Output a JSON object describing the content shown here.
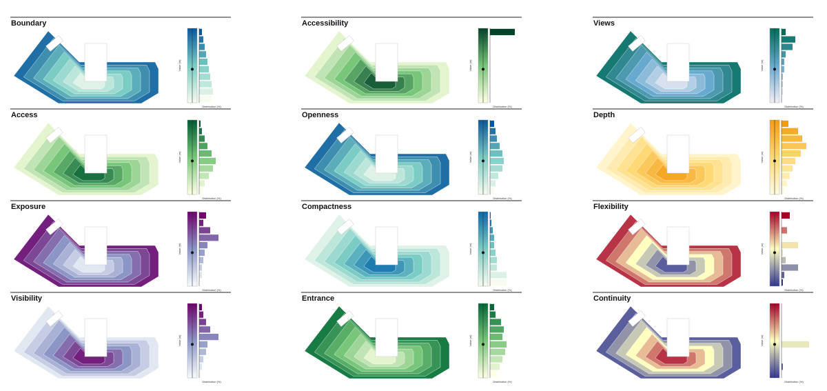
{
  "panels": [
    {
      "title": "Boundary",
      "y_label": "Value (m)",
      "x_label": "Distribution (%)",
      "palette": [
        "#f7fcf0",
        "#7bccc4",
        "#08589e"
      ],
      "bars": [
        2,
        3,
        4,
        5,
        6,
        7,
        8,
        9,
        10,
        9
      ]
    },
    {
      "title": "Accessibility",
      "y_label": "Value (m)",
      "x_label": "Distribution (%)",
      "palette": [
        "#ffffe5",
        "#78c679",
        "#004529"
      ],
      "bars": [
        18,
        0,
        0,
        0,
        0,
        0,
        0,
        0,
        0,
        0
      ]
    },
    {
      "title": "Views",
      "y_label": "Value (m)",
      "x_label": "Distribution (%)",
      "palette": [
        "#f2eef7",
        "#67a9cf",
        "#016c59"
      ],
      "bars": [
        3,
        10,
        8,
        3,
        2,
        2,
        1,
        1,
        1,
        0.5
      ]
    },
    {
      "title": "Access",
      "y_label": "Value (m)",
      "x_label": "Distribution (%)",
      "palette": [
        "#ffffe5",
        "#78c679",
        "#005a32"
      ],
      "bars": [
        1,
        2,
        4,
        6,
        9,
        12,
        10,
        7,
        4,
        2
      ]
    },
    {
      "title": "Openness",
      "y_label": "Value (m)",
      "x_label": "Distribution (%)",
      "palette": [
        "#f7fcf0",
        "#7bccc4",
        "#08589e"
      ],
      "bars": [
        3,
        4,
        5,
        7,
        9,
        10,
        9,
        6,
        4,
        3
      ]
    },
    {
      "title": "Depth",
      "y_label": "Value (m)",
      "x_label": "Distribution (%)",
      "palette": [
        "#fffbe0",
        "#fed976",
        "#f39c12"
      ],
      "bars": [
        5,
        12,
        15,
        18,
        14,
        10,
        8,
        6,
        4,
        2
      ]
    },
    {
      "title": "Exposure",
      "y_label": "Value (m)",
      "x_label": "Distribution (%)",
      "palette": [
        "#f7fcfd",
        "#8c96c6",
        "#6e016b"
      ],
      "bars": [
        5,
        3,
        8,
        14,
        6,
        4,
        3,
        2,
        2,
        1
      ]
    },
    {
      "title": "Compactness",
      "y_label": "Value (m)",
      "x_label": "Distribution (%)",
      "palette": [
        "#f7fcf0",
        "#7bccc4",
        "#0868ac"
      ],
      "bars": [
        0.5,
        1,
        2,
        3,
        3,
        4,
        5,
        5,
        12,
        12
      ]
    },
    {
      "title": "Flexibility",
      "y_label": "Value (m)",
      "x_label": "Distribution (%)",
      "palette": [
        "#313695",
        "#ffffbf",
        "#a50026"
      ],
      "bars": [
        6,
        0,
        4,
        0,
        12,
        1,
        3,
        12,
        2,
        1
      ]
    },
    {
      "title": "Visibility",
      "y_label": "Value (m)",
      "x_label": "Distribution (%)",
      "palette": [
        "#f7fcfd",
        "#8c96c6",
        "#6e016b"
      ],
      "bars": [
        2,
        3,
        5,
        8,
        14,
        6,
        5,
        3,
        2,
        1
      ]
    },
    {
      "title": "Entrance",
      "y_label": "Value (m)",
      "x_label": "Distribution (%)",
      "palette": [
        "#ffffe5",
        "#78c679",
        "#006837"
      ],
      "bars": [
        3,
        4,
        8,
        10,
        9,
        12,
        11,
        9,
        7,
        5
      ]
    },
    {
      "title": "Continuity",
      "y_label": "Value (m)",
      "x_label": "Distribution (%)",
      "palette": [
        "#313695",
        "#ffffbf",
        "#a50026"
      ],
      "bars": [
        0,
        0,
        0,
        0,
        0,
        20,
        0,
        0,
        1,
        0
      ]
    }
  ]
}
